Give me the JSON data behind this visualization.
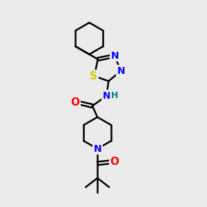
{
  "background_color": "#ebebeb",
  "atom_colors": {
    "N": "#0000ff",
    "O": "#ff0000",
    "S": "#cccc00",
    "C": "#000000",
    "H": "#008080"
  },
  "bond_color": "#000000",
  "bond_width": 1.8,
  "font_size": 9,
  "fig_size": [
    3.0,
    3.0
  ],
  "dpi": 100
}
